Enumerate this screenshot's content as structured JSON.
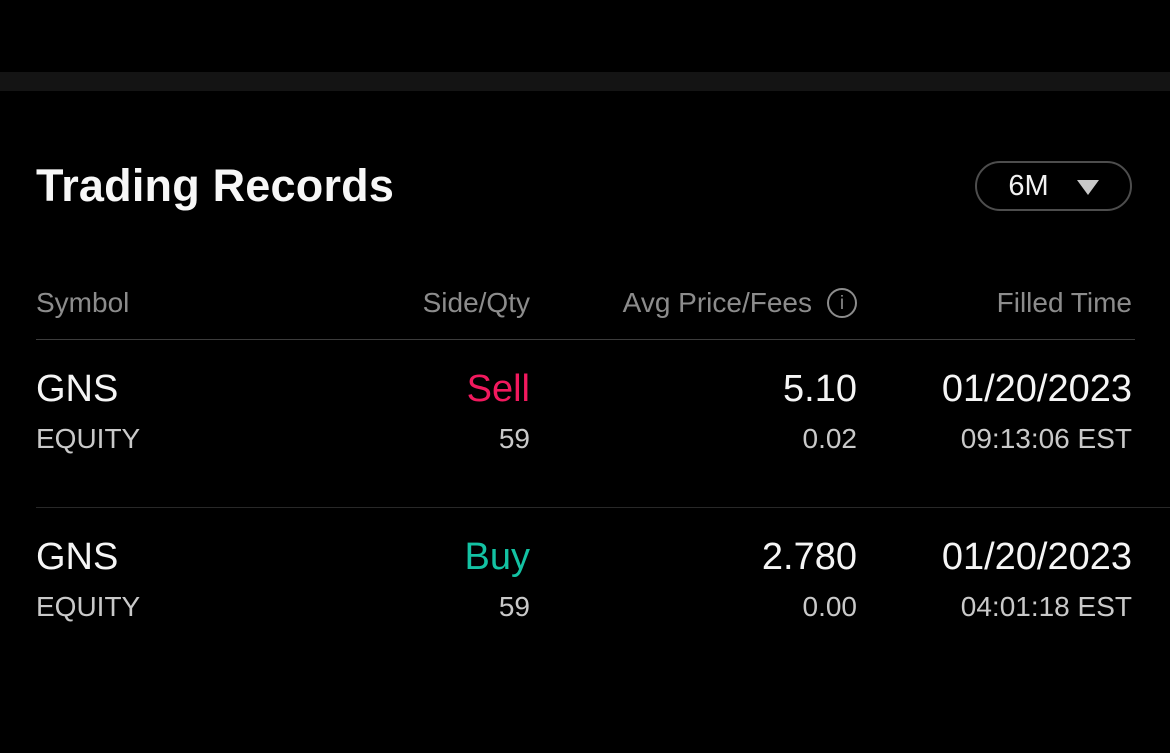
{
  "panel": {
    "title": "Trading Records",
    "period_selector": {
      "selected": "6M",
      "icon": "chevron-down"
    }
  },
  "table": {
    "headers": {
      "symbol": "Symbol",
      "side_qty": "Side/Qty",
      "avg_price_fees": "Avg Price/Fees",
      "filled_time": "Filled Time"
    },
    "info_icon_glyph": "i",
    "rows": [
      {
        "symbol": "GNS",
        "asset_type": "EQUITY",
        "side": "Sell",
        "qty": "59",
        "avg_price": "5.10",
        "fees": "0.02",
        "filled_date": "01/20/2023",
        "filled_time": "09:13:06 EST"
      },
      {
        "symbol": "GNS",
        "asset_type": "EQUITY",
        "side": "Buy",
        "qty": "59",
        "avg_price": "2.780",
        "fees": "0.00",
        "filled_date": "01/20/2023",
        "filled_time": "04:01:18 EST"
      }
    ]
  },
  "colors": {
    "background": "#000000",
    "gap_strip": "#141414",
    "sell": "#F2195E",
    "buy": "#13C2A3",
    "primary_text": "#F5F5F5",
    "secondary_text": "#C9C9C9",
    "header_text": "#8C8C8C",
    "button_border": "#4D4D4D"
  }
}
